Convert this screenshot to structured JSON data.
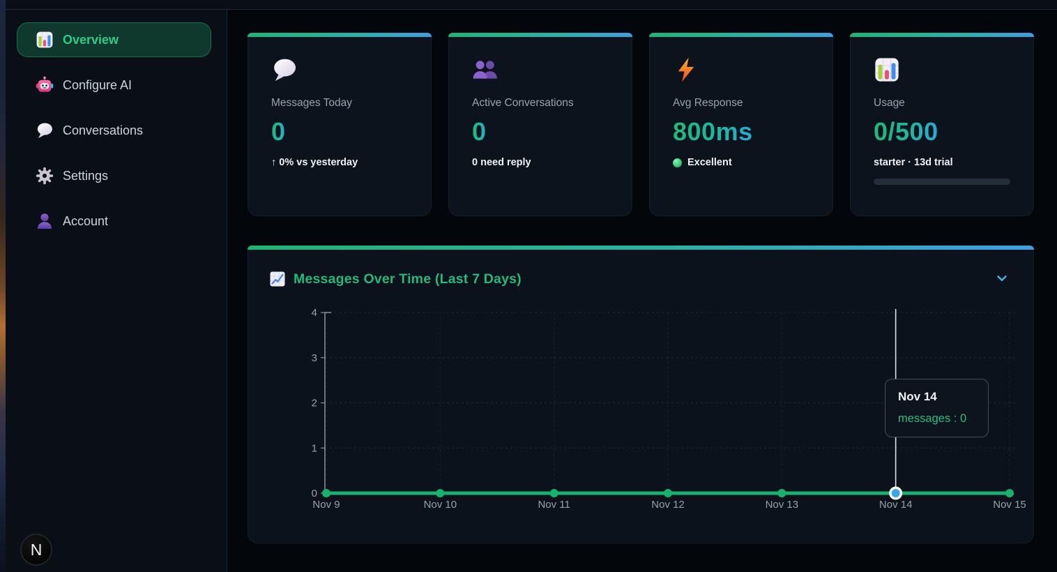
{
  "sidebar": {
    "items": [
      {
        "label": "Overview",
        "icon": "bar-chart-icon",
        "active": true
      },
      {
        "label": "Configure AI",
        "icon": "robot-icon",
        "active": false
      },
      {
        "label": "Conversations",
        "icon": "speech-balloon-icon",
        "active": false
      },
      {
        "label": "Settings",
        "icon": "gear-icon",
        "active": false
      },
      {
        "label": "Account",
        "icon": "person-icon",
        "active": false
      }
    ],
    "badge_label": "N"
  },
  "stats": {
    "cards": [
      {
        "icon": "speech-balloon-icon",
        "label": "Messages Today",
        "value": "0",
        "sub": "↑ 0% vs yesterday"
      },
      {
        "icon": "two-people-icon",
        "label": "Active Conversations",
        "value": "0",
        "sub": "0 need reply"
      },
      {
        "icon": "lightning-icon",
        "label": "Avg Response",
        "value": "800ms",
        "sub": "Excellent",
        "status_dot_color": "#34d77b"
      },
      {
        "icon": "bar-chart-icon",
        "label": "Usage",
        "value": "0/500",
        "sub": "starter · 13d trial",
        "progress_percent": 0
      }
    ]
  },
  "chart_card": {
    "title": "Messages Over Time (Last 7 Days)",
    "collapse_icon": "chevron-down-icon"
  },
  "chart_data": {
    "type": "line",
    "title": "Messages Over Time (Last 7 Days)",
    "x": [
      "Nov 9",
      "Nov 10",
      "Nov 11",
      "Nov 12",
      "Nov 13",
      "Nov 14",
      "Nov 15"
    ],
    "series": [
      {
        "name": "messages",
        "values": [
          0,
          0,
          0,
          0,
          0,
          0,
          0
        ],
        "color": "#17b26e"
      }
    ],
    "ylim": [
      0,
      4
    ],
    "yticks": [
      0,
      1,
      2,
      3,
      4
    ],
    "grid": true,
    "legend": false,
    "active_point": {
      "index": 5,
      "label": "Nov 14",
      "value": 0,
      "dot_color": "#3aa7e6",
      "ring_color": "#ffffff"
    },
    "tooltip": {
      "title": "Nov 14",
      "text": "messages : 0"
    }
  },
  "colors": {
    "accent_green": "#22b877",
    "accent_blue": "#3d9fe2",
    "active_nav_text": "#2ecb8b",
    "card_top_gradient": [
      "#1eb573",
      "#29b2a5",
      "#3d9fe2"
    ],
    "chart_line": "#17b26e",
    "crosshair": "#dbe1e8",
    "axis_text": "#97a1ad"
  }
}
